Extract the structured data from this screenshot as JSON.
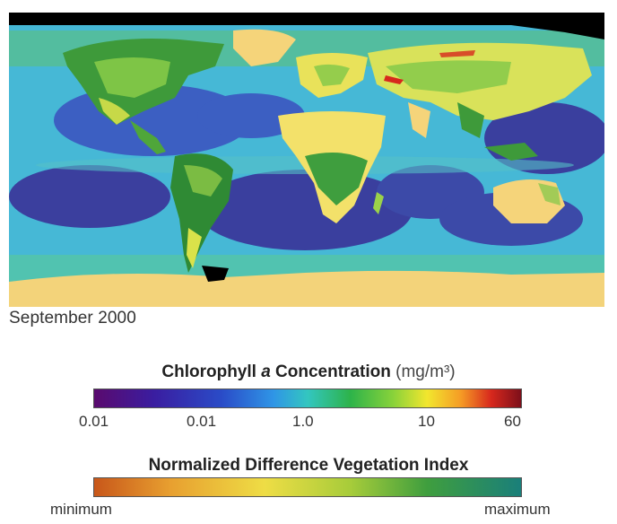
{
  "map": {
    "date": "September 2000"
  },
  "chlorophyll_legend": {
    "title_pre": "Chlorophyll ",
    "title_italic": "a",
    "title_post": " Concentration",
    "unit": "(mg/m³)",
    "ticks": [
      "0.01",
      "0.01",
      "1.0",
      "10",
      "60"
    ]
  },
  "ndvi_legend": {
    "title": "Normalized Difference Vegetation Index",
    "min_label": "minimum",
    "max_label": "maximum"
  },
  "colors": {
    "ocean_deep": "#3b3f9e",
    "ocean_mid": "#3f8fdc",
    "ocean_shallow": "#4fc3b4",
    "land_desert": "#f5d47a",
    "land_green": "#2e8d3a",
    "ice": "#f3d37a",
    "no_data": "#000000"
  }
}
